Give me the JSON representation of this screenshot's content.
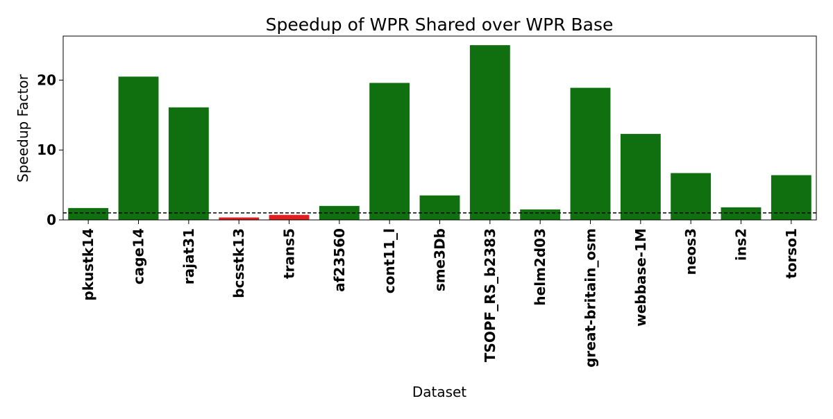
{
  "chart_data": {
    "type": "bar",
    "title": "Speedup of WPR Shared over WPR Base",
    "xlabel": "Dataset",
    "ylabel": "Speedup Factor",
    "categories": [
      "pkustk14",
      "cage14",
      "rajat31",
      "bcsstk13",
      "trans5",
      "af23560",
      "cont11_l",
      "sme3Db",
      "TSOPF_RS_b2383",
      "helm2d03",
      "great-britain_osm",
      "webbase-1M",
      "neos3",
      "ins2",
      "torso1"
    ],
    "values": [
      1.7,
      20.5,
      16.1,
      0.35,
      0.72,
      2.0,
      19.6,
      3.5,
      25.0,
      1.5,
      18.9,
      12.3,
      6.7,
      1.8,
      6.4
    ],
    "ylim": [
      0,
      26.3
    ],
    "yticks": [
      0,
      10,
      20
    ],
    "reference_line": 1,
    "grid": false,
    "colors": {
      "speedup": "#107010",
      "slowdown": "#e02020",
      "reference": "#000000"
    }
  }
}
